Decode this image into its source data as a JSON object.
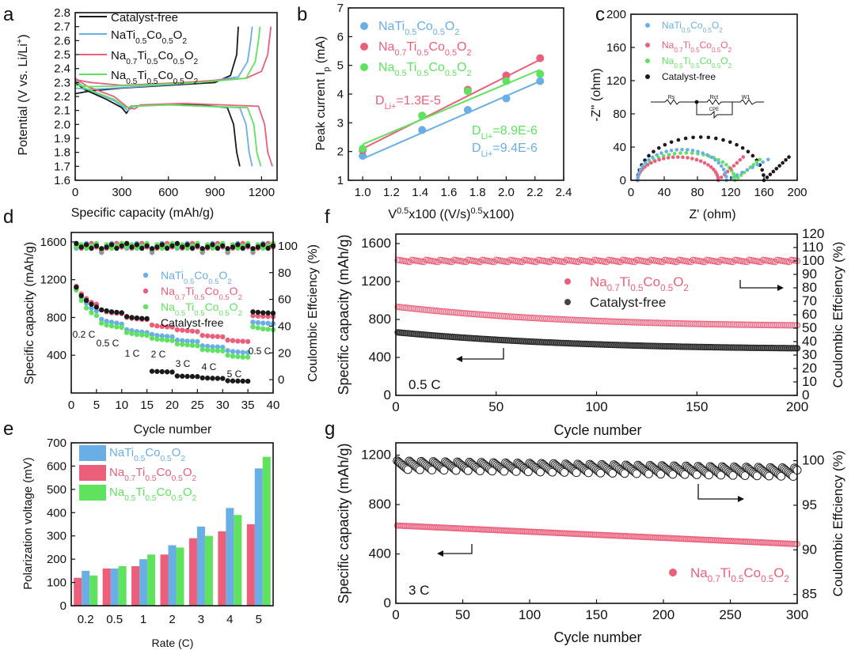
{
  "colors": {
    "blue": "#6aaee6",
    "red": "#ec5f7b",
    "green": "#5fe35f",
    "black": "#1a1a1a",
    "gray": "#444444"
  },
  "labels": {
    "na07": "Na0.7Ti0.5Co0.5O2",
    "nati": "NaTi0.5Co0.5O2",
    "na05": "Na0.5Ti0.5Co0.5O2",
    "free": "Catalyst-free"
  },
  "chart_data": [
    {
      "id": "a",
      "panel_label": "a",
      "type": "line",
      "xlabel": "Specific capacity (mAh/g)",
      "ylabel": "Potential (V vs. Li/Li+)",
      "xlim": [
        0,
        1300
      ],
      "ylim": [
        1.6,
        2.8
      ],
      "xticks": [
        0,
        300,
        600,
        900,
        1200
      ],
      "yticks": [
        1.6,
        1.7,
        1.8,
        1.9,
        2.0,
        2.1,
        2.2,
        2.3,
        2.4,
        2.5,
        2.6,
        2.7,
        2.8
      ],
      "legend": [
        "Catalyst-free",
        "NaTi0.5Co0.5O2",
        "Na0.7Ti0.5Co0.5O2",
        "Na0.5Ti0.5Co0.5O2"
      ],
      "series": [
        {
          "name": "Catalyst-free",
          "color": "#1a1a1a",
          "discharge": [
            [
              0,
              2.3
            ],
            [
              60,
              2.25
            ],
            [
              200,
              2.18
            ],
            [
              300,
              2.12
            ],
            [
              330,
              2.08
            ],
            [
              360,
              2.13
            ],
            [
              500,
              2.14
            ],
            [
              800,
              2.14
            ],
            [
              980,
              2.12
            ],
            [
              1020,
              2.0
            ],
            [
              1040,
              1.8
            ],
            [
              1060,
              1.7
            ]
          ],
          "charge": [
            [
              0,
              2.22
            ],
            [
              100,
              2.24
            ],
            [
              300,
              2.26
            ],
            [
              600,
              2.28
            ],
            [
              900,
              2.3
            ],
            [
              1000,
              2.35
            ],
            [
              1040,
              2.5
            ],
            [
              1050,
              2.7
            ]
          ]
        },
        {
          "name": "NaTi0.5Co0.5O2",
          "color": "#6aaee6",
          "discharge": [
            [
              0,
              2.32
            ],
            [
              60,
              2.26
            ],
            [
              250,
              2.17
            ],
            [
              340,
              2.1
            ],
            [
              380,
              2.13
            ],
            [
              600,
              2.14
            ],
            [
              1060,
              2.12
            ],
            [
              1100,
              2.0
            ],
            [
              1120,
              1.8
            ],
            [
              1140,
              1.7
            ]
          ],
          "charge": [
            [
              0,
              2.26
            ],
            [
              100,
              2.25
            ],
            [
              400,
              2.27
            ],
            [
              800,
              2.3
            ],
            [
              1050,
              2.34
            ],
            [
              1110,
              2.45
            ],
            [
              1130,
              2.6
            ],
            [
              1140,
              2.7
            ]
          ]
        },
        {
          "name": "Na0.7Ti0.5Co0.5O2",
          "color": "#ec5f7b",
          "discharge": [
            [
              0,
              2.33
            ],
            [
              80,
              2.27
            ],
            [
              250,
              2.2
            ],
            [
              340,
              2.12
            ],
            [
              380,
              2.11
            ],
            [
              420,
              2.14
            ],
            [
              700,
              2.15
            ],
            [
              1180,
              2.13
            ],
            [
              1220,
              2.0
            ],
            [
              1240,
              1.8
            ],
            [
              1270,
              1.7
            ]
          ],
          "charge": [
            [
              0,
              2.32
            ],
            [
              100,
              2.3
            ],
            [
              300,
              2.28
            ],
            [
              700,
              2.3
            ],
            [
              1100,
              2.33
            ],
            [
              1200,
              2.38
            ],
            [
              1240,
              2.5
            ],
            [
              1260,
              2.7
            ]
          ]
        },
        {
          "name": "Na0.5Ti0.5Co0.5O2",
          "color": "#5fe35f",
          "discharge": [
            [
              0,
              2.31
            ],
            [
              60,
              2.26
            ],
            [
              250,
              2.18
            ],
            [
              330,
              2.12
            ],
            [
              370,
              2.13
            ],
            [
              600,
              2.14
            ],
            [
              1110,
              2.12
            ],
            [
              1150,
              2.0
            ],
            [
              1170,
              1.8
            ],
            [
              1195,
              1.7
            ]
          ],
          "charge": [
            [
              0,
              2.28
            ],
            [
              100,
              2.27
            ],
            [
              400,
              2.28
            ],
            [
              800,
              2.3
            ],
            [
              1100,
              2.33
            ],
            [
              1160,
              2.45
            ],
            [
              1180,
              2.6
            ],
            [
              1190,
              2.7
            ]
          ]
        }
      ]
    },
    {
      "id": "b",
      "panel_label": "b",
      "type": "scatter",
      "xlabel": "V0.5x100 ((V/s)0.5x100)",
      "ylabel": "Peak current Ip (mA)",
      "xlim": [
        0.9,
        2.4
      ],
      "ylim": [
        1,
        7
      ],
      "xticks": [
        1.0,
        1.2,
        1.4,
        1.6,
        1.8,
        2.0,
        2.2,
        2.4
      ],
      "yticks": [
        1,
        2,
        3,
        4,
        5,
        6,
        7
      ],
      "x": [
        1.0,
        1.414,
        1.732,
        2.0,
        2.236
      ],
      "series": [
        {
          "name": "NaTi0.5Co0.5O2",
          "color": "#6aaee6",
          "values": [
            1.85,
            2.75,
            3.45,
            3.85,
            4.45
          ],
          "fit": [
            [
              1.0,
              1.75
            ],
            [
              2.236,
              4.45
            ]
          ]
        },
        {
          "name": "Na0.7Ti0.5Co0.5O2",
          "color": "#ec5f7b",
          "values": [
            2.05,
            3.25,
            4.15,
            4.65,
            5.25
          ],
          "fit": [
            [
              1.0,
              2.1
            ],
            [
              2.236,
              5.2
            ]
          ]
        },
        {
          "name": "Na0.5Ti0.5Co0.5O2",
          "color": "#5fe35f",
          "values": [
            2.1,
            3.25,
            4.1,
            4.45,
            4.7
          ],
          "fit": [
            [
              1.0,
              2.25
            ],
            [
              2.236,
              4.85
            ]
          ]
        }
      ],
      "annotations": [
        {
          "text": "DLi+=1.3E-5",
          "color": "#ec5f7b"
        },
        {
          "text": "DLi+=8.9E-6",
          "color": "#5fe35f"
        },
        {
          "text": "DLi+=9.4E-6",
          "color": "#6aaee6"
        }
      ]
    },
    {
      "id": "c",
      "panel_label": "c",
      "type": "scatter",
      "xlabel": "Z' (ohm)",
      "ylabel": "-Z'' (ohm)",
      "xlim": [
        0,
        200
      ],
      "ylim": [
        0,
        200
      ],
      "xticks": [
        0,
        40,
        80,
        120,
        160,
        200
      ],
      "yticks": [
        0,
        40,
        80,
        120,
        160,
        200
      ],
      "circuit": [
        "Rs",
        "Rct",
        "CPE",
        "W1"
      ],
      "series": [
        {
          "name": "NaTi0.5Co0.5O2",
          "color": "#6aaee6",
          "arc": {
            "start": 8,
            "end": 115,
            "height": 37
          },
          "tail_end": [
            165,
            25
          ]
        },
        {
          "name": "Na0.7Ti0.5Co0.5O2",
          "color": "#ec5f7b",
          "arc": {
            "start": 8,
            "end": 105,
            "height": 28
          },
          "tail_end": [
            135,
            28
          ]
        },
        {
          "name": "Na0.5Ti0.5Co0.5O2",
          "color": "#5fe35f",
          "arc": {
            "start": 8,
            "end": 125,
            "height": 33
          },
          "tail_end": [
            155,
            25
          ]
        },
        {
          "name": "Catalyst-free",
          "color": "#1a1a1a",
          "arc": {
            "start": 8,
            "end": 160,
            "height": 52
          },
          "tail_end": [
            190,
            28
          ]
        }
      ]
    },
    {
      "id": "d",
      "panel_label": "d",
      "type": "scatter",
      "xlabel": "Cycle number",
      "ylabel": "Specific capacity (mAh/g)",
      "y2label": "Coulombic Effciency (%)",
      "xlim": [
        0,
        40
      ],
      "ylim": [
        0,
        1700
      ],
      "y2lim": [
        -10,
        110
      ],
      "xticks": [
        0,
        5,
        10,
        15,
        20,
        25,
        30,
        35,
        40
      ],
      "yticks": [
        400,
        800,
        1200,
        1600
      ],
      "y2ticks": [
        0,
        20,
        40,
        60,
        80,
        100
      ],
      "rates": [
        "0.2 C",
        "0.5 C",
        "1 C",
        "2 C",
        "3 C",
        "4 C",
        "5 C",
        "0.5 C"
      ],
      "series": [
        {
          "name": "NaTi0.5Co0.5O2",
          "color": "#6aaee6",
          "values": [
            1110,
            1010,
            950,
            900,
            870,
            780,
            760,
            750,
            740,
            730,
            670,
            660,
            650,
            645,
            640,
            620,
            610,
            605,
            600,
            595,
            560,
            555,
            550,
            548,
            545,
            500,
            495,
            490,
            488,
            485,
            450,
            440,
            435,
            430,
            430,
            750,
            745,
            740,
            738,
            735
          ]
        },
        {
          "name": "Na0.7Ti0.5Co0.5O2",
          "color": "#ec5f7b",
          "values": [
            1130,
            1050,
            1000,
            960,
            940,
            880,
            860,
            850,
            845,
            840,
            800,
            790,
            785,
            780,
            778,
            720,
            710,
            705,
            700,
            698,
            670,
            665,
            660,
            655,
            650,
            610,
            605,
            600,
            598,
            595,
            560,
            555,
            550,
            548,
            545,
            820,
            815,
            812,
            810,
            808
          ]
        },
        {
          "name": "Na0.5Ti0.5Co0.5O2",
          "color": "#5fe35f",
          "values": [
            1090,
            980,
            900,
            850,
            820,
            740,
            720,
            710,
            700,
            695,
            640,
            630,
            620,
            615,
            610,
            580,
            570,
            565,
            560,
            555,
            520,
            515,
            510,
            505,
            500,
            460,
            455,
            450,
            448,
            445,
            400,
            390,
            385,
            380,
            380,
            700,
            690,
            680,
            675,
            670
          ]
        },
        {
          "name": "Catalyst-free",
          "color": "#1a1a1a",
          "values": [
            1120,
            1030,
            980,
            940,
            910,
            880,
            870,
            860,
            855,
            850,
            810,
            800,
            795,
            790,
            788,
            230,
            228,
            226,
            224,
            222,
            180,
            178,
            176,
            175,
            174,
            160,
            158,
            156,
            155,
            154,
            130,
            128,
            127,
            126,
            125,
            860,
            855,
            850,
            848,
            846
          ]
        }
      ]
    },
    {
      "id": "e",
      "panel_label": "e",
      "type": "bar",
      "xlabel": "Rate (C)",
      "ylabel": "Polarization voltage (mV)",
      "ylim": [
        0,
        700
      ],
      "yticks": [
        0,
        100,
        200,
        300,
        400,
        500,
        600,
        700
      ],
      "categories": [
        "0.2",
        "0.5",
        "1",
        "2",
        "3",
        "4",
        "5"
      ],
      "series": [
        {
          "name": "NaTi0.5Co0.5O2",
          "color": "#6aaee6",
          "values": [
            150,
            160,
            200,
            260,
            340,
            420,
            590
          ]
        },
        {
          "name": "Na0.7Ti0.5Co0.5O2",
          "color": "#ec5f7b",
          "values": [
            120,
            160,
            170,
            220,
            290,
            320,
            350
          ]
        },
        {
          "name": "Na0.5Ti0.5Co0.5O2",
          "color": "#5fe35f",
          "values": [
            130,
            170,
            220,
            250,
            300,
            390,
            640
          ]
        }
      ]
    },
    {
      "id": "f",
      "panel_label": "f",
      "type": "scatter",
      "xlabel": "Cycle number",
      "ylabel": "Specific capacity (mAh/g)",
      "y2label": "Coulombic Effciency (%)",
      "xlim": [
        0,
        200
      ],
      "ylim": [
        0,
        1700
      ],
      "y2lim": [
        0,
        120
      ],
      "xticks": [
        0,
        50,
        100,
        150,
        200
      ],
      "yticks": [
        0,
        400,
        800,
        1200,
        1600
      ],
      "y2ticks": [
        0,
        10,
        20,
        30,
        40,
        50,
        60,
        70,
        80,
        90,
        100,
        110,
        120
      ],
      "rate_label": "0.5 C",
      "series": [
        {
          "name": "Na0.7Ti0.5Co0.5O2",
          "color": "#ec5f7b",
          "start": 980,
          "end": 690,
          "ce": 100
        },
        {
          "name": "Catalyst-free",
          "color": "#333333",
          "start": 720,
          "end": 440
        }
      ]
    },
    {
      "id": "g",
      "panel_label": "g",
      "type": "scatter",
      "xlabel": "Cycle number",
      "ylabel": "Specific capacity (mAh/g)",
      "y2label": "Coulombic Effciency (%)",
      "xlim": [
        0,
        300
      ],
      "ylim": [
        0,
        1300
      ],
      "y2lim": [
        84,
        102
      ],
      "xticks": [
        0,
        50,
        100,
        150,
        200,
        250,
        300
      ],
      "yticks": [
        0,
        400,
        800,
        1200
      ],
      "y2ticks": [
        85,
        90,
        95,
        100
      ],
      "rate_label": "3 C",
      "series": [
        {
          "name": "Na0.7Ti0.5Co0.5O2",
          "color": "#ec5f7b",
          "start": 630,
          "end": 480,
          "ce_start": 99.5,
          "ce_end": 98.7
        }
      ]
    }
  ]
}
